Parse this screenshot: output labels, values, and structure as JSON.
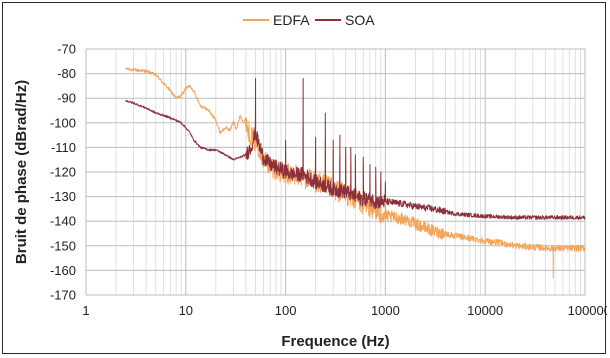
{
  "chart_data": {
    "type": "line",
    "title": "",
    "xlabel": "Frequence (Hz)",
    "ylabel": "Bruit de phase (dBrad/Hz)",
    "x_scale": "log",
    "xlim": [
      1,
      100000
    ],
    "ylim": [
      -170,
      -70
    ],
    "x_ticks": [
      1,
      10,
      100,
      1000,
      10000,
      100000
    ],
    "x_tick_labels": [
      "1",
      "10",
      "100",
      "1000",
      "10000",
      "100000"
    ],
    "y_ticks": [
      -70,
      -80,
      -90,
      -100,
      -110,
      -120,
      -130,
      -140,
      -150,
      -160,
      -170
    ],
    "y_tick_labels": [
      "-70",
      "-80",
      "-90",
      "-100",
      "-110",
      "-120",
      "-130",
      "-140",
      "-150",
      "-160",
      "-170"
    ],
    "grid": true,
    "legend_position": "top-center",
    "series": [
      {
        "name": "EDFA",
        "color": "#f5a55a",
        "points": [
          [
            2.5,
            -78
          ],
          [
            3,
            -78.5
          ],
          [
            4,
            -79
          ],
          [
            5,
            -80.5
          ],
          [
            6,
            -84
          ],
          [
            7,
            -87
          ],
          [
            8,
            -90
          ],
          [
            9,
            -89
          ],
          [
            10,
            -86
          ],
          [
            11,
            -85
          ],
          [
            12,
            -87
          ],
          [
            14,
            -93
          ],
          [
            17,
            -95
          ],
          [
            20,
            -99
          ],
          [
            22,
            -104
          ],
          [
            25,
            -102
          ],
          [
            28,
            -103
          ],
          [
            30,
            -99
          ],
          [
            32,
            -103
          ],
          [
            35,
            -97
          ],
          [
            38,
            -100
          ],
          [
            40,
            -98
          ],
          [
            42,
            -103
          ],
          [
            45,
            -105
          ],
          [
            50,
            -108
          ],
          [
            55,
            -110
          ],
          [
            60,
            -115
          ],
          [
            70,
            -117
          ],
          [
            80,
            -119
          ],
          [
            90,
            -120
          ],
          [
            100,
            -121
          ],
          [
            120,
            -121
          ],
          [
            150,
            -122
          ],
          [
            200,
            -124
          ],
          [
            300,
            -127
          ],
          [
            400,
            -129
          ],
          [
            500,
            -131
          ],
          [
            600,
            -133
          ],
          [
            700,
            -134
          ],
          [
            800,
            -136
          ],
          [
            900,
            -137
          ],
          [
            1000,
            -138
          ],
          [
            1500,
            -139
          ],
          [
            2000,
            -141
          ],
          [
            3000,
            -144
          ],
          [
            5000,
            -146
          ],
          [
            7000,
            -147
          ],
          [
            10000,
            -148
          ],
          [
            15000,
            -149
          ],
          [
            20000,
            -150
          ],
          [
            30000,
            -150.5
          ],
          [
            45000,
            -151
          ],
          [
            48000,
            -151
          ],
          [
            50000,
            -151
          ],
          [
            70000,
            -151
          ],
          [
            100000,
            -151
          ]
        ],
        "peaks": [
          {
            "x": 50,
            "top": -90
          },
          {
            "x": 100,
            "top": -112
          },
          {
            "x": 150,
            "top": -102
          },
          {
            "x": 200,
            "top": -110
          },
          {
            "x": 250,
            "top": -107
          },
          {
            "x": 300,
            "top": -111
          },
          {
            "x": 350,
            "top": -114
          },
          {
            "x": 400,
            "top": -113
          },
          {
            "x": 450,
            "top": -117
          },
          {
            "x": 500,
            "top": -115
          },
          {
            "x": 600,
            "top": -117
          },
          {
            "x": 700,
            "top": -120
          },
          {
            "x": 800,
            "top": -122
          },
          {
            "x": 900,
            "top": -124
          },
          {
            "x": 1000,
            "top": -125
          }
        ],
        "dips": [
          {
            "x": 48000,
            "bottom": -163
          }
        ]
      },
      {
        "name": "SOA",
        "color": "#8b2f3c",
        "points": [
          [
            2.5,
            -91
          ],
          [
            3,
            -92
          ],
          [
            4,
            -94
          ],
          [
            5,
            -96
          ],
          [
            6,
            -97
          ],
          [
            7,
            -98
          ],
          [
            8,
            -99
          ],
          [
            9,
            -100
          ],
          [
            10,
            -102
          ],
          [
            11,
            -104
          ],
          [
            12,
            -107
          ],
          [
            14,
            -110
          ],
          [
            17,
            -111
          ],
          [
            20,
            -111
          ],
          [
            25,
            -113
          ],
          [
            30,
            -115
          ],
          [
            35,
            -114
          ],
          [
            40,
            -113
          ],
          [
            45,
            -110
          ],
          [
            50,
            -104
          ],
          [
            55,
            -110
          ],
          [
            60,
            -114
          ],
          [
            70,
            -117
          ],
          [
            80,
            -118
          ],
          [
            90,
            -119
          ],
          [
            100,
            -120
          ],
          [
            120,
            -121
          ],
          [
            150,
            -121
          ],
          [
            200,
            -124
          ],
          [
            300,
            -127
          ],
          [
            400,
            -128
          ],
          [
            500,
            -130
          ],
          [
            600,
            -131
          ],
          [
            700,
            -131
          ],
          [
            800,
            -132
          ],
          [
            900,
            -132
          ],
          [
            1000,
            -132
          ],
          [
            1500,
            -133
          ],
          [
            2000,
            -134
          ],
          [
            3000,
            -135
          ],
          [
            5000,
            -137
          ],
          [
            7000,
            -137.5
          ],
          [
            10000,
            -138
          ],
          [
            20000,
            -138.5
          ],
          [
            50000,
            -138.5
          ],
          [
            100000,
            -138.5
          ]
        ],
        "peaks": [
          {
            "x": 50,
            "top": -82
          },
          {
            "x": 100,
            "top": -107
          },
          {
            "x": 150,
            "top": -82
          },
          {
            "x": 200,
            "top": -106
          },
          {
            "x": 250,
            "top": -96
          },
          {
            "x": 300,
            "top": -107
          },
          {
            "x": 350,
            "top": -105
          },
          {
            "x": 400,
            "top": -110
          },
          {
            "x": 450,
            "top": -110
          },
          {
            "x": 500,
            "top": -113
          },
          {
            "x": 600,
            "top": -114
          },
          {
            "x": 700,
            "top": -117
          },
          {
            "x": 800,
            "top": -118
          },
          {
            "x": 900,
            "top": -120
          },
          {
            "x": 1000,
            "top": -124
          }
        ],
        "dips": []
      }
    ]
  }
}
